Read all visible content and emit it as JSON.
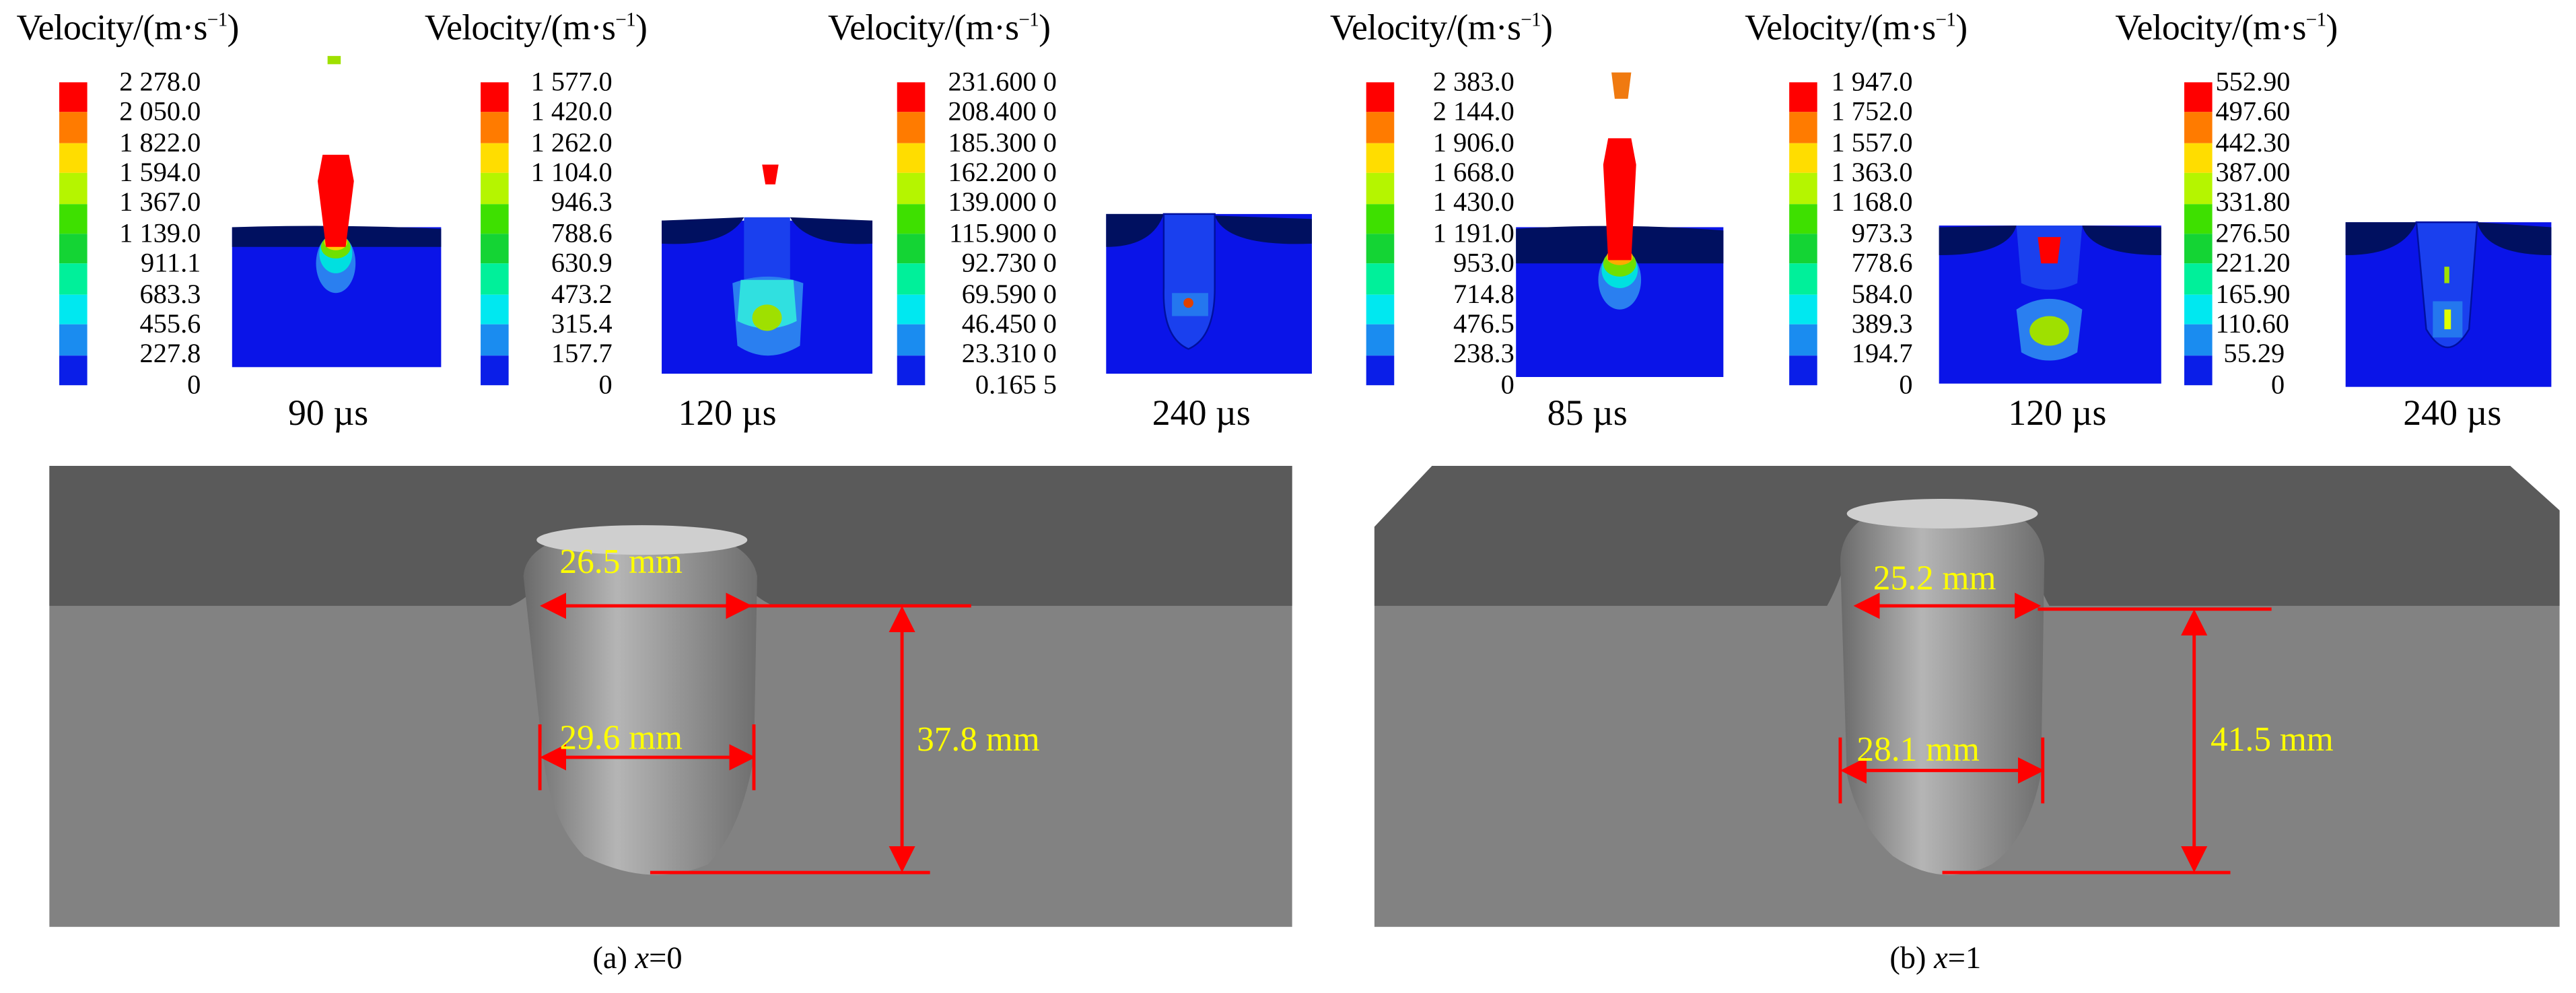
{
  "legend_title": "Velocity/(m·s",
  "legend_exp": "−1",
  "legend_close": ")",
  "colorbar_colors": [
    "#ff0000",
    "#ff7b00",
    "#ffdd00",
    "#b5f500",
    "#3ee000",
    "#14d434",
    "#00f09a",
    "#00e8f0",
    "#1a8cf0",
    "#0a1ee8"
  ],
  "panels": [
    {
      "time": "90 µs",
      "legend": [
        "2 278.0",
        "2 050.0",
        "1 822.0",
        "1 594.0",
        "1 367.0",
        "1 139.0",
        "911.1",
        "683.3",
        "455.6",
        "227.8",
        "0"
      ]
    },
    {
      "time": "120 µs",
      "legend": [
        "1 577.0",
        "1 420.0",
        "1 262.0",
        "1 104.0",
        "946.3",
        "788.6",
        "630.9",
        "473.2",
        "315.4",
        "157.7",
        "0"
      ]
    },
    {
      "time": "240 µs",
      "legend": [
        "231.600 0",
        "208.400 0",
        "185.300 0",
        "162.200 0",
        "139.000 0",
        "115.900 0",
        "92.730 0",
        "69.590 0",
        "46.450 0",
        "23.310 0",
        "0.165 5"
      ]
    },
    {
      "time": "85 µs",
      "legend": [
        "2 383.0",
        "2 144.0",
        "1 906.0",
        "1 668.0",
        "1 430.0",
        "1 191.0",
        "953.0",
        "714.8",
        "476.5",
        "238.3",
        "0"
      ]
    },
    {
      "time": "120 µs",
      "legend": [
        "1 947.0",
        "1 752.0",
        "1 557.0",
        "1 363.0",
        "1 168.0",
        "973.3",
        "778.6",
        "584.0",
        "389.3",
        "194.7",
        "0"
      ]
    },
    {
      "time": "240 µs",
      "legend": [
        "552.90",
        "497.60",
        "442.30",
        "387.00",
        "331.80",
        "276.50",
        "221.20",
        "165.90",
        "110.60",
        "55.29",
        "0"
      ]
    }
  ],
  "crater_a": {
    "top_width": "26.5 mm",
    "mid_width": "29.6 mm",
    "depth": "37.8 mm"
  },
  "crater_b": {
    "top_width": "25.2 mm",
    "mid_width": "28.1 mm",
    "depth": "41.5 mm"
  },
  "captions": {
    "a_prefix": "(a) ",
    "a_var": "x",
    "a_value": "=0",
    "b_prefix": "(b) ",
    "b_var": "x",
    "b_value": "=1"
  },
  "colors": {
    "annotation_line": "#ff0000",
    "annotation_text": "#ffff00",
    "target_dark": "#5a5a5a",
    "target_light": "#828282"
  }
}
